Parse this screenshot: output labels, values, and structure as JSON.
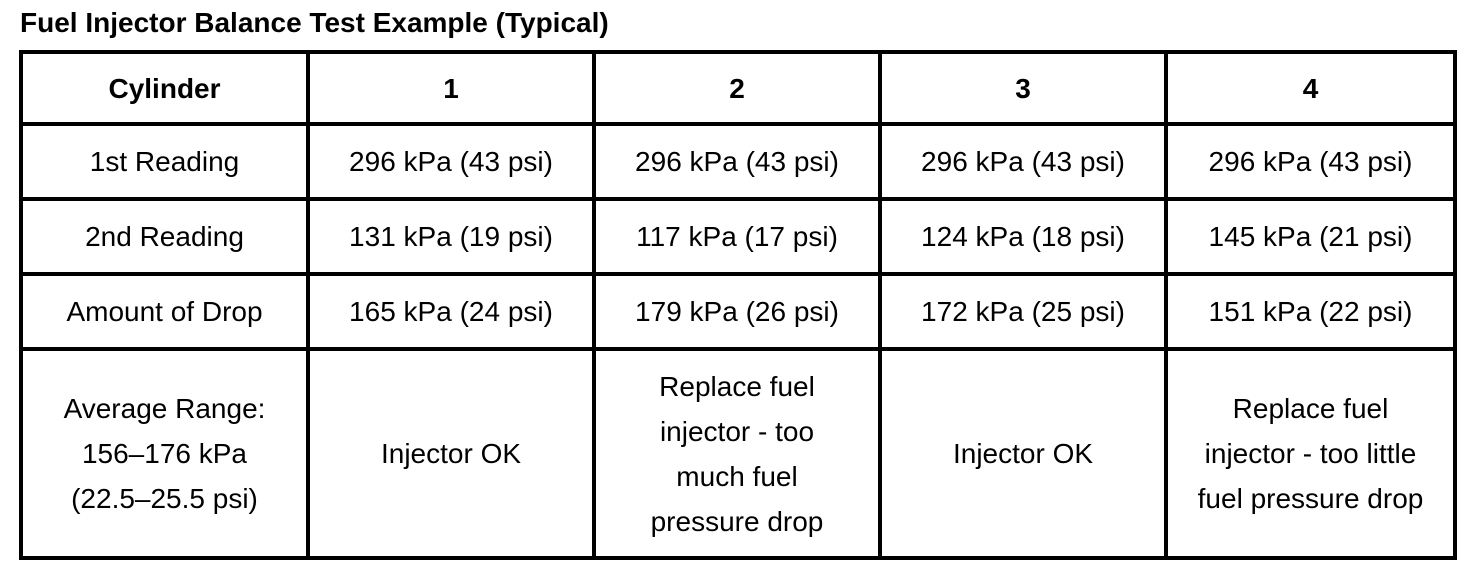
{
  "page_title": "Fuel Injector Balance Test Example (Typical)",
  "table": {
    "columns": [
      "Cylinder",
      "1",
      "2",
      "3",
      "4"
    ],
    "rows": [
      {
        "label": "1st Reading",
        "cells": [
          "296 kPa (43 psi)",
          "296 kPa (43 psi)",
          "296 kPa (43 psi)",
          "296 kPa (43 psi)"
        ]
      },
      {
        "label": "2nd Reading",
        "cells": [
          "131 kPa (19 psi)",
          "117 kPa (17 psi)",
          "124 kPa (18 psi)",
          "145 kPa (21 psi)"
        ]
      },
      {
        "label": "Amount of Drop",
        "cells": [
          "165 kPa (24 psi)",
          "179 kPa (26 psi)",
          "172 kPa (25 psi)",
          "151 kPa (22 psi)"
        ]
      },
      {
        "label": "Average Range:\n156–176 kPa\n(22.5–25.5 psi)",
        "cells": [
          "Injector OK",
          "Replace fuel\ninjector - too\nmuch fuel\npressure drop",
          "Injector OK",
          "Replace fuel\ninjector - too little\nfuel pressure drop"
        ]
      }
    ]
  },
  "colors": {
    "background": "#ffffff",
    "text": "#000000",
    "border": "#000000"
  }
}
